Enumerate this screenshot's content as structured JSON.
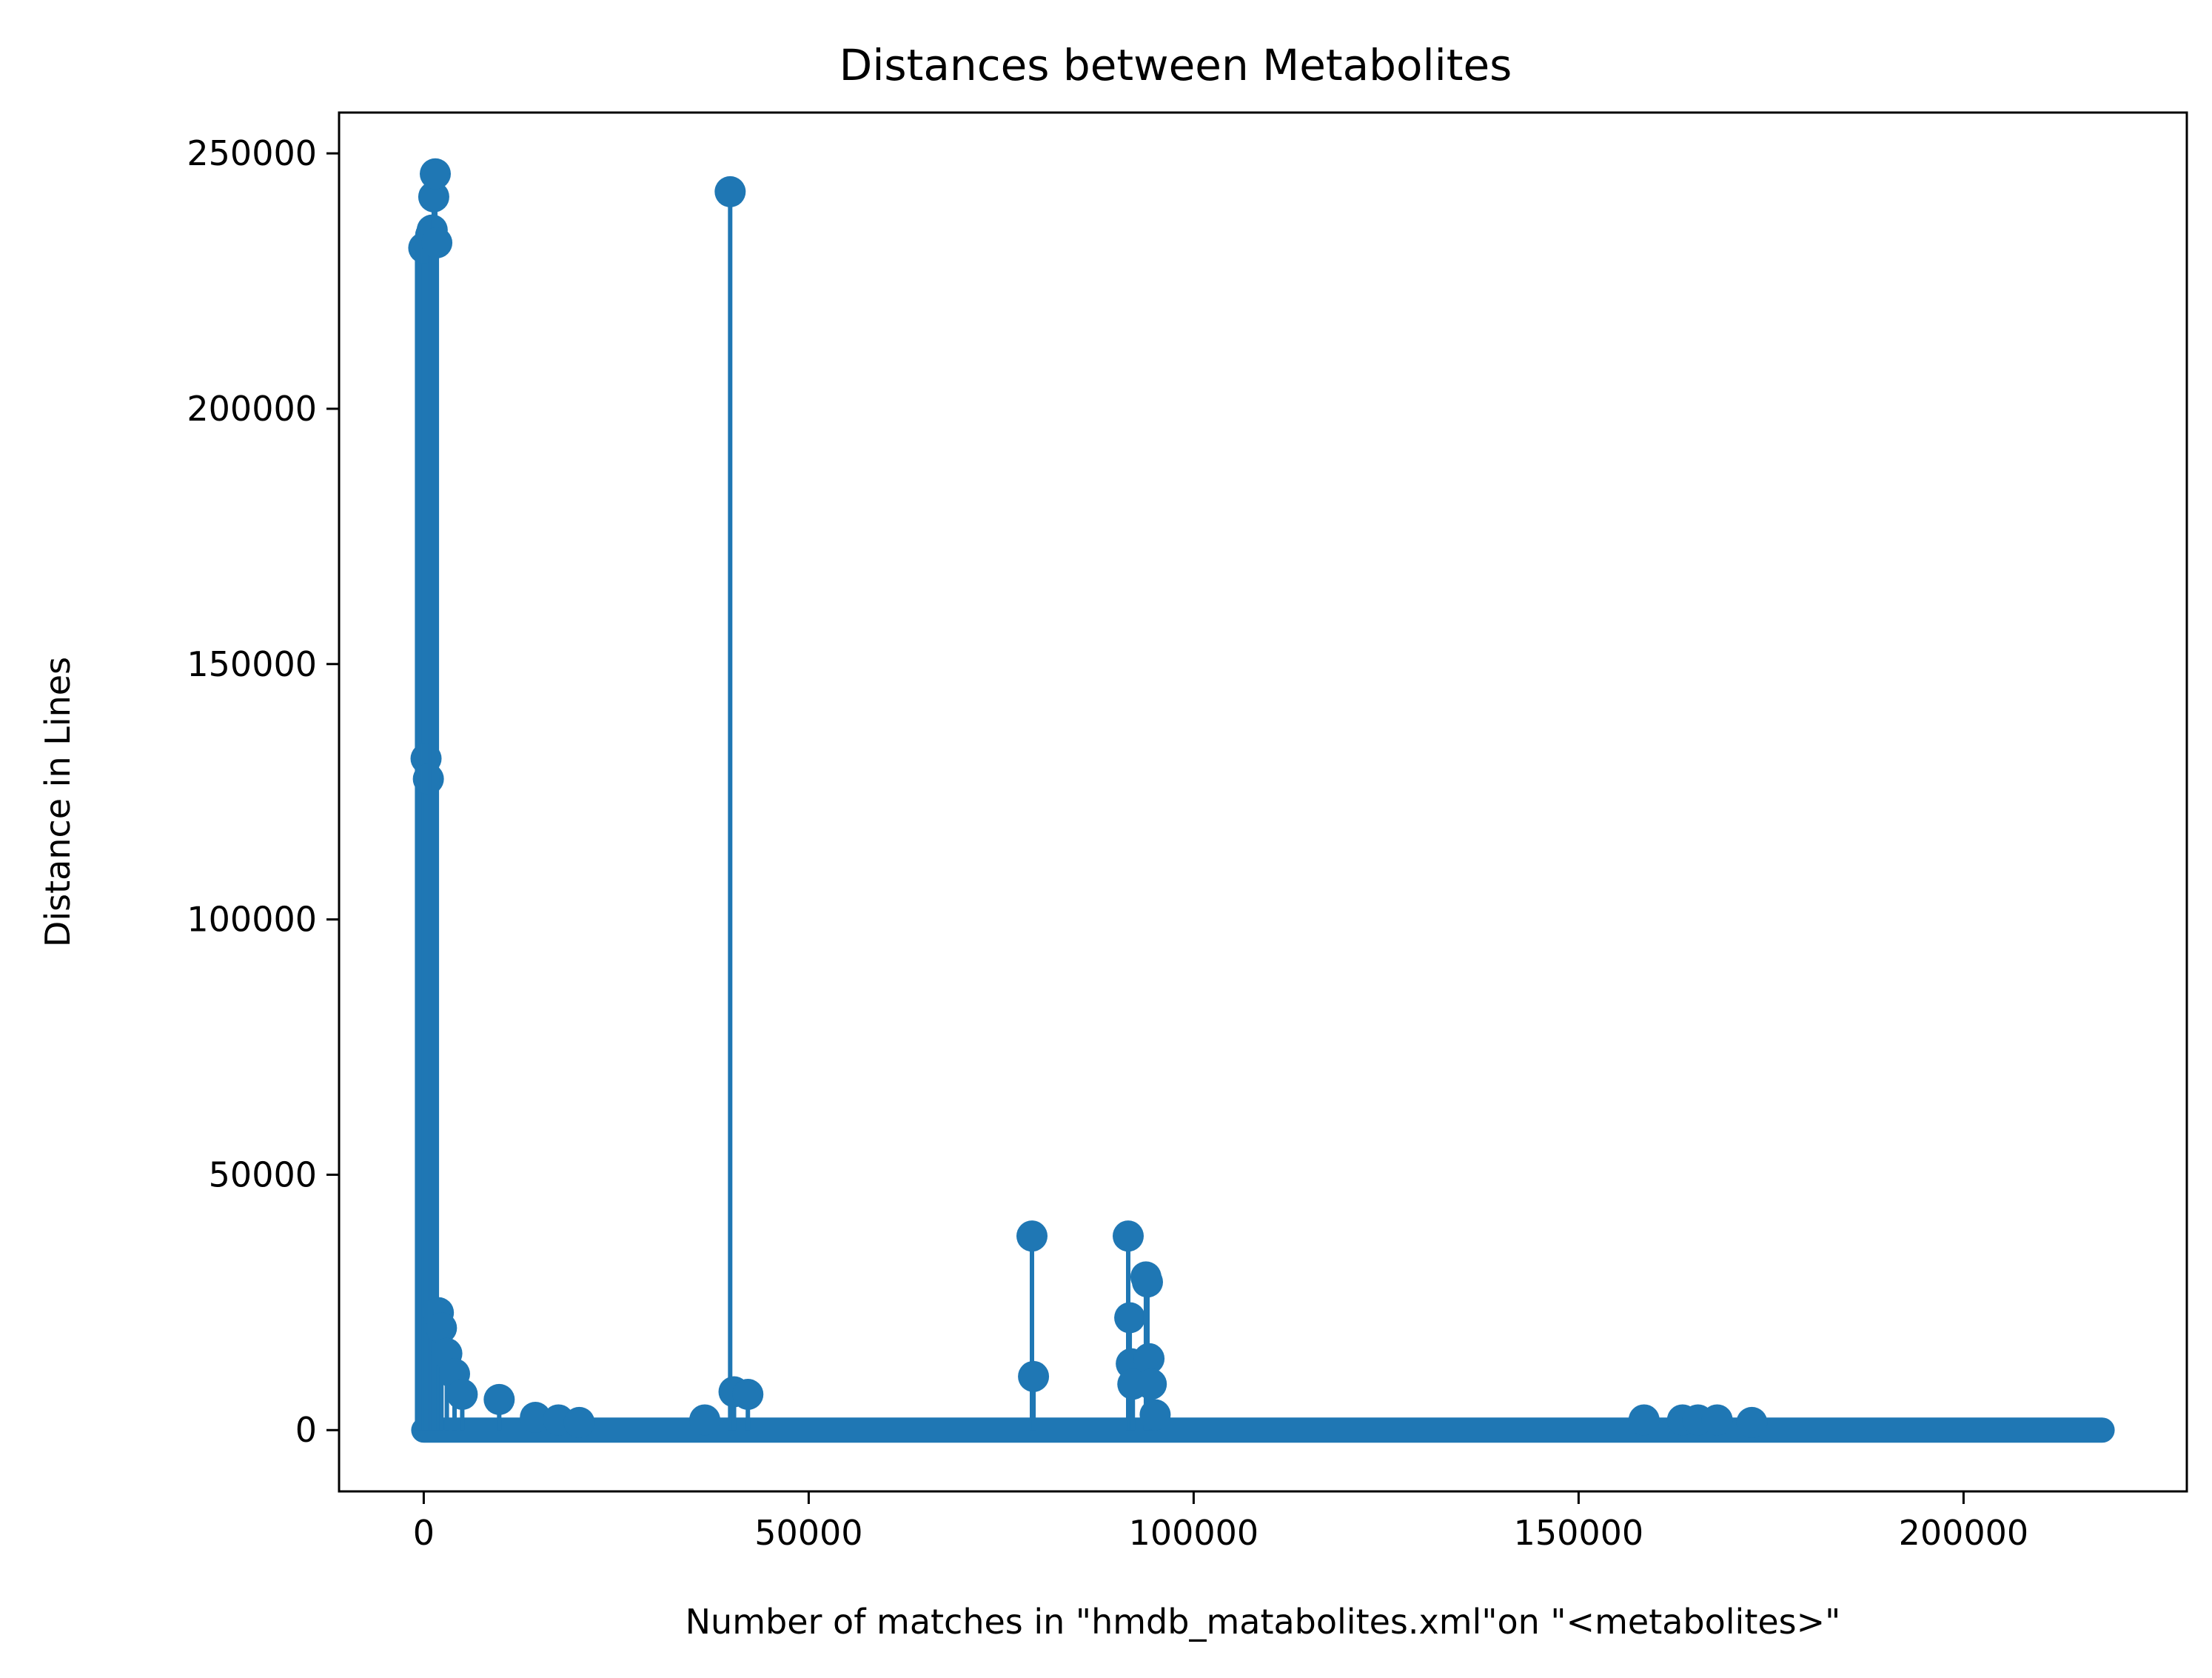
{
  "colors": {
    "series": "#1f77b4",
    "axes": "#000000",
    "background": "#ffffff"
  },
  "chart_data": {
    "type": "scatter",
    "style": "stem plot with circular markers and a thick baseline band",
    "title": "Distances between Metabolites",
    "xlabel": "Number of matches in \"hmdb_matabolites.xml\"on \"<metabolites>\"",
    "ylabel": "Distance in Lines",
    "xlim": [
      -11000,
      229000
    ],
    "ylim": [
      -12000,
      258000
    ],
    "xticks": [
      0,
      50000,
      100000,
      150000,
      200000
    ],
    "xtick_labels": [
      "0",
      "50000",
      "100000",
      "150000",
      "200000"
    ],
    "yticks": [
      0,
      50000,
      100000,
      150000,
      200000,
      250000
    ],
    "ytick_labels": [
      "0",
      "50000",
      "100000",
      "150000",
      "200000",
      "250000"
    ],
    "grid": false,
    "legend": "none",
    "baseline_range": [
      0,
      218000
    ],
    "x": [
      0,
      300,
      600,
      900,
      1100,
      1300,
      1500,
      1700,
      1900,
      2300,
      3000,
      4000,
      5000,
      9800,
      14500,
      17500,
      20200,
      36500,
      39800,
      40300,
      42100,
      79000,
      79200,
      91500,
      91700,
      91900,
      92100,
      93800,
      94000,
      94200,
      94500,
      95000,
      158500,
      163500,
      165500,
      168000,
      172500
    ],
    "y": [
      231500,
      131500,
      127500,
      234000,
      235000,
      241500,
      246000,
      232500,
      23000,
      20000,
      15000,
      11000,
      7000,
      6000,
      2500,
      2000,
      1500,
      2000,
      242500,
      7500,
      7000,
      38000,
      10500,
      38000,
      22000,
      13000,
      9000,
      30000,
      29000,
      14000,
      9000,
      3000,
      2000,
      2000,
      2000,
      2000,
      1500
    ]
  }
}
